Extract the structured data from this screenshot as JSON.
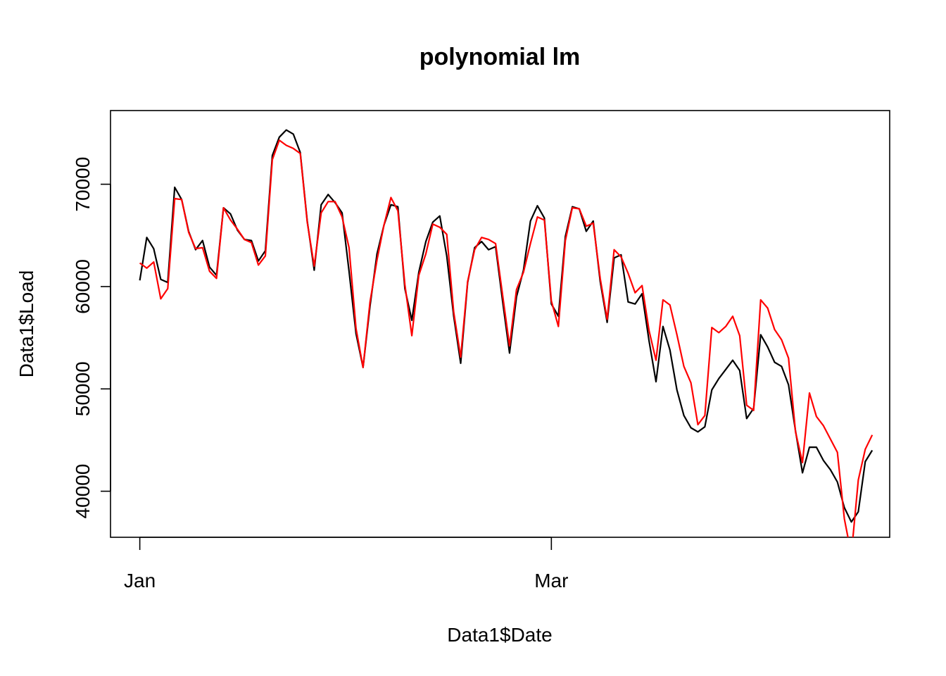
{
  "chart_data": {
    "type": "line",
    "title": "polynomial lm",
    "xlabel": "Data1$Date",
    "ylabel": "Data1$Load",
    "x_ticks": [
      {
        "label": "Jan",
        "day": 1
      },
      {
        "label": "Mar",
        "day": 60
      }
    ],
    "y_ticks": [
      40000,
      50000,
      60000,
      70000
    ],
    "xlim": [
      -3.2,
      108.5
    ],
    "ylim": [
      35500,
      77200
    ],
    "grid": false,
    "legend": "none",
    "series": [
      {
        "color": "#000000",
        "start_day": 1,
        "values": [
          60600,
          64800,
          63700,
          60700,
          60400,
          69700,
          68500,
          65400,
          63600,
          64500,
          61900,
          61100,
          67700,
          67100,
          65500,
          64600,
          64500,
          62500,
          63500,
          72800,
          74600,
          75300,
          74900,
          73100,
          66400,
          61600,
          68000,
          69000,
          68200,
          67200,
          61500,
          55400,
          52100,
          58100,
          63200,
          66000,
          68000,
          67800,
          59800,
          56700,
          61400,
          64400,
          66300,
          66900,
          63000,
          57100,
          52500,
          60400,
          63800,
          64400,
          63600,
          63900,
          58600,
          53500,
          59000,
          61600,
          66400,
          67900,
          66700,
          58300,
          57100,
          64900,
          67800,
          67600,
          65400,
          66400,
          60500,
          56500,
          62800,
          63100,
          58500,
          58300,
          59300,
          54700,
          50700,
          56100,
          53800,
          49900,
          47400,
          46200,
          45800,
          46300,
          49900,
          51000,
          51900,
          52800,
          51800,
          47100,
          48100,
          55300,
          54100,
          52600,
          52200,
          50400,
          45900,
          41800,
          44300,
          44300,
          43000,
          42100,
          40900,
          38400,
          37000,
          38000,
          42900,
          44000
        ],
        "pixel_aspect": 1
      },
      {
        "color": "#ff0000",
        "start_day": 1,
        "values": [
          62300,
          61800,
          62400,
          58800,
          59800,
          68600,
          68500,
          65300,
          63700,
          63800,
          61500,
          60800,
          67700,
          66500,
          65600,
          64600,
          64300,
          62100,
          63000,
          72400,
          74300,
          73800,
          73500,
          73000,
          66300,
          62000,
          67200,
          68300,
          68300,
          66800,
          63800,
          55900,
          52100,
          58500,
          62600,
          66000,
          68700,
          67400,
          60200,
          55200,
          61100,
          63200,
          66100,
          65800,
          65100,
          57500,
          53100,
          60500,
          63600,
          64800,
          64600,
          64200,
          59200,
          54200,
          59700,
          61400,
          64200,
          66800,
          66500,
          58600,
          56100,
          64500,
          67700,
          67600,
          65900,
          66200,
          60800,
          56800,
          63600,
          62900,
          61300,
          59400,
          60100,
          55700,
          52800,
          58700,
          58200,
          55300,
          52200,
          50600,
          46500,
          47400,
          56000,
          55500,
          56100,
          57100,
          55200,
          48400,
          47900,
          58700,
          57900,
          55800,
          54800,
          53000,
          45800,
          42800,
          49600,
          47300,
          46400,
          45100,
          43800,
          37300,
          33800,
          41100,
          44100,
          45500
        ],
        "pixel_aspect": 1
      }
    ]
  }
}
